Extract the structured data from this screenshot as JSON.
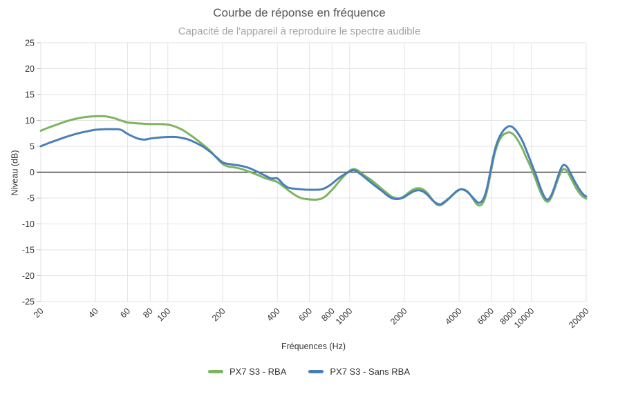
{
  "page": {
    "background": "#ffffff"
  },
  "chart_data": {
    "type": "line",
    "title": "Courbe de réponse en fréquence",
    "subtitle": "Capacité de l'appareil à reproduire le spectre audible",
    "xlabel": "Fréquences (Hz)",
    "ylabel": "Niveau (dB)",
    "x_scale": "log",
    "xlim": [
      20,
      20000
    ],
    "ylim": [
      -25,
      25
    ],
    "x_ticks": [
      20,
      40,
      60,
      80,
      100,
      200,
      400,
      600,
      800,
      1000,
      2000,
      4000,
      6000,
      8000,
      10000,
      20000
    ],
    "y_ticks": [
      25,
      20,
      15,
      10,
      5,
      0,
      -5,
      -10,
      -15,
      -20,
      -25
    ],
    "grid": true,
    "zero_line": true,
    "legend_position": "bottom",
    "series": [
      {
        "name": "PX7 S3 - RBA",
        "color": "#7cb55e",
        "points": [
          [
            20,
            8.0
          ],
          [
            22,
            8.6
          ],
          [
            25,
            9.3
          ],
          [
            28,
            9.9
          ],
          [
            32,
            10.4
          ],
          [
            36,
            10.7
          ],
          [
            40,
            10.8
          ],
          [
            45,
            10.8
          ],
          [
            50,
            10.5
          ],
          [
            55,
            10.0
          ],
          [
            60,
            9.6
          ],
          [
            65,
            9.5
          ],
          [
            70,
            9.4
          ],
          [
            80,
            9.3
          ],
          [
            90,
            9.3
          ],
          [
            100,
            9.2
          ],
          [
            110,
            8.8
          ],
          [
            120,
            8.2
          ],
          [
            130,
            7.4
          ],
          [
            140,
            6.6
          ],
          [
            155,
            5.4
          ],
          [
            170,
            4.2
          ],
          [
            185,
            2.8
          ],
          [
            200,
            1.6
          ],
          [
            215,
            1.1
          ],
          [
            235,
            0.9
          ],
          [
            255,
            0.6
          ],
          [
            280,
            0.1
          ],
          [
            310,
            -0.5
          ],
          [
            340,
            -1.1
          ],
          [
            370,
            -1.5
          ],
          [
            400,
            -1.9
          ],
          [
            430,
            -2.7
          ],
          [
            460,
            -3.5
          ],
          [
            500,
            -4.4
          ],
          [
            540,
            -5.0
          ],
          [
            580,
            -5.2
          ],
          [
            620,
            -5.3
          ],
          [
            660,
            -5.3
          ],
          [
            700,
            -5.1
          ],
          [
            740,
            -4.6
          ],
          [
            780,
            -3.8
          ],
          [
            820,
            -3.0
          ],
          [
            860,
            -2.1
          ],
          [
            900,
            -1.3
          ],
          [
            950,
            -0.4
          ],
          [
            1000,
            0.3
          ],
          [
            1050,
            0.6
          ],
          [
            1100,
            0.4
          ],
          [
            1150,
            -0.1
          ],
          [
            1200,
            -0.6
          ],
          [
            1300,
            -1.4
          ],
          [
            1400,
            -2.3
          ],
          [
            1500,
            -3.2
          ],
          [
            1600,
            -4.0
          ],
          [
            1700,
            -4.7
          ],
          [
            1800,
            -5.0
          ],
          [
            1900,
            -5.0
          ],
          [
            2000,
            -4.6
          ],
          [
            2100,
            -4.0
          ],
          [
            2250,
            -3.3
          ],
          [
            2400,
            -3.1
          ],
          [
            2550,
            -3.4
          ],
          [
            2700,
            -4.2
          ],
          [
            2850,
            -5.3
          ],
          [
            3000,
            -6.2
          ],
          [
            3150,
            -6.4
          ],
          [
            3300,
            -6.0
          ],
          [
            3500,
            -5.2
          ],
          [
            3700,
            -4.4
          ],
          [
            3900,
            -3.7
          ],
          [
            4100,
            -3.3
          ],
          [
            4300,
            -3.4
          ],
          [
            4500,
            -3.9
          ],
          [
            4700,
            -4.8
          ],
          [
            4900,
            -5.8
          ],
          [
            5100,
            -6.4
          ],
          [
            5300,
            -6.3
          ],
          [
            5500,
            -5.4
          ],
          [
            5700,
            -3.6
          ],
          [
            5900,
            -1.0
          ],
          [
            6100,
            1.6
          ],
          [
            6300,
            3.8
          ],
          [
            6600,
            5.9
          ],
          [
            6900,
            7.0
          ],
          [
            7200,
            7.5
          ],
          [
            7600,
            7.7
          ],
          [
            8000,
            7.2
          ],
          [
            8400,
            6.2
          ],
          [
            8900,
            4.6
          ],
          [
            9400,
            2.7
          ],
          [
            10000,
            0.7
          ],
          [
            10600,
            -1.6
          ],
          [
            11200,
            -3.8
          ],
          [
            11800,
            -5.3
          ],
          [
            12300,
            -5.7
          ],
          [
            12800,
            -5.0
          ],
          [
            13400,
            -3.2
          ],
          [
            14000,
            -1.3
          ],
          [
            14600,
            0.2
          ],
          [
            15100,
            0.6
          ],
          [
            15700,
            0.2
          ],
          [
            16500,
            -1.2
          ],
          [
            17500,
            -2.9
          ],
          [
            18500,
            -4.2
          ],
          [
            19300,
            -4.8
          ],
          [
            20000,
            -5.1
          ]
        ]
      },
      {
        "name": "PX7 S3 - Sans RBA",
        "color": "#4a7eb9",
        "points": [
          [
            20,
            5.0
          ],
          [
            22,
            5.6
          ],
          [
            25,
            6.3
          ],
          [
            28,
            6.9
          ],
          [
            32,
            7.5
          ],
          [
            36,
            7.9
          ],
          [
            40,
            8.2
          ],
          [
            45,
            8.3
          ],
          [
            50,
            8.3
          ],
          [
            55,
            8.2
          ],
          [
            60,
            7.4
          ],
          [
            65,
            6.8
          ],
          [
            70,
            6.4
          ],
          [
            75,
            6.3
          ],
          [
            80,
            6.5
          ],
          [
            90,
            6.7
          ],
          [
            100,
            6.8
          ],
          [
            110,
            6.8
          ],
          [
            120,
            6.6
          ],
          [
            130,
            6.3
          ],
          [
            140,
            5.8
          ],
          [
            155,
            5.0
          ],
          [
            170,
            4.0
          ],
          [
            185,
            2.9
          ],
          [
            200,
            1.9
          ],
          [
            215,
            1.6
          ],
          [
            235,
            1.4
          ],
          [
            255,
            1.2
          ],
          [
            280,
            0.8
          ],
          [
            310,
            0.1
          ],
          [
            340,
            -0.6
          ],
          [
            370,
            -1.2
          ],
          [
            400,
            -1.2
          ],
          [
            430,
            -2.3
          ],
          [
            460,
            -3.0
          ],
          [
            500,
            -3.2
          ],
          [
            540,
            -3.3
          ],
          [
            580,
            -3.4
          ],
          [
            620,
            -3.4
          ],
          [
            660,
            -3.4
          ],
          [
            700,
            -3.3
          ],
          [
            740,
            -3.0
          ],
          [
            780,
            -2.5
          ],
          [
            820,
            -1.9
          ],
          [
            860,
            -1.3
          ],
          [
            900,
            -0.8
          ],
          [
            950,
            -0.3
          ],
          [
            1000,
            0.1
          ],
          [
            1050,
            0.4
          ],
          [
            1100,
            0.1
          ],
          [
            1150,
            -0.4
          ],
          [
            1200,
            -0.9
          ],
          [
            1300,
            -1.9
          ],
          [
            1400,
            -2.8
          ],
          [
            1500,
            -3.6
          ],
          [
            1600,
            -4.4
          ],
          [
            1700,
            -5.0
          ],
          [
            1800,
            -5.2
          ],
          [
            1900,
            -5.1
          ],
          [
            2000,
            -4.8
          ],
          [
            2100,
            -4.3
          ],
          [
            2250,
            -3.7
          ],
          [
            2400,
            -3.5
          ],
          [
            2550,
            -3.8
          ],
          [
            2700,
            -4.5
          ],
          [
            2850,
            -5.4
          ],
          [
            3000,
            -6.0
          ],
          [
            3150,
            -6.2
          ],
          [
            3300,
            -5.8
          ],
          [
            3500,
            -5.1
          ],
          [
            3700,
            -4.3
          ],
          [
            3900,
            -3.6
          ],
          [
            4100,
            -3.3
          ],
          [
            4300,
            -3.5
          ],
          [
            4500,
            -4.0
          ],
          [
            4700,
            -4.7
          ],
          [
            4900,
            -5.4
          ],
          [
            5100,
            -5.9
          ],
          [
            5300,
            -5.7
          ],
          [
            5500,
            -4.8
          ],
          [
            5700,
            -3.0
          ],
          [
            5900,
            -0.4
          ],
          [
            6100,
            2.2
          ],
          [
            6300,
            4.4
          ],
          [
            6600,
            6.5
          ],
          [
            6900,
            7.7
          ],
          [
            7200,
            8.5
          ],
          [
            7600,
            8.9
          ],
          [
            8000,
            8.5
          ],
          [
            8400,
            7.6
          ],
          [
            8900,
            6.1
          ],
          [
            9400,
            4.1
          ],
          [
            10000,
            1.7
          ],
          [
            10600,
            -0.6
          ],
          [
            11200,
            -3.0
          ],
          [
            11800,
            -4.8
          ],
          [
            12300,
            -5.3
          ],
          [
            12800,
            -4.6
          ],
          [
            13400,
            -2.8
          ],
          [
            14000,
            -0.8
          ],
          [
            14600,
            0.9
          ],
          [
            15100,
            1.4
          ],
          [
            15700,
            1.0
          ],
          [
            16500,
            -0.4
          ],
          [
            17500,
            -2.1
          ],
          [
            18500,
            -3.5
          ],
          [
            19300,
            -4.3
          ],
          [
            20000,
            -4.7
          ]
        ]
      }
    ]
  },
  "styles": {
    "grid_color": "#e3e3e3",
    "zero_line_color": "#424242",
    "tick_mark_color": "#bdbdbd",
    "tick_label_color": "#333333",
    "axis_title_color": "#333333",
    "title_color": "#565656",
    "subtitle_color": "#a3a3a3",
    "legend_text_color": "#333333"
  }
}
